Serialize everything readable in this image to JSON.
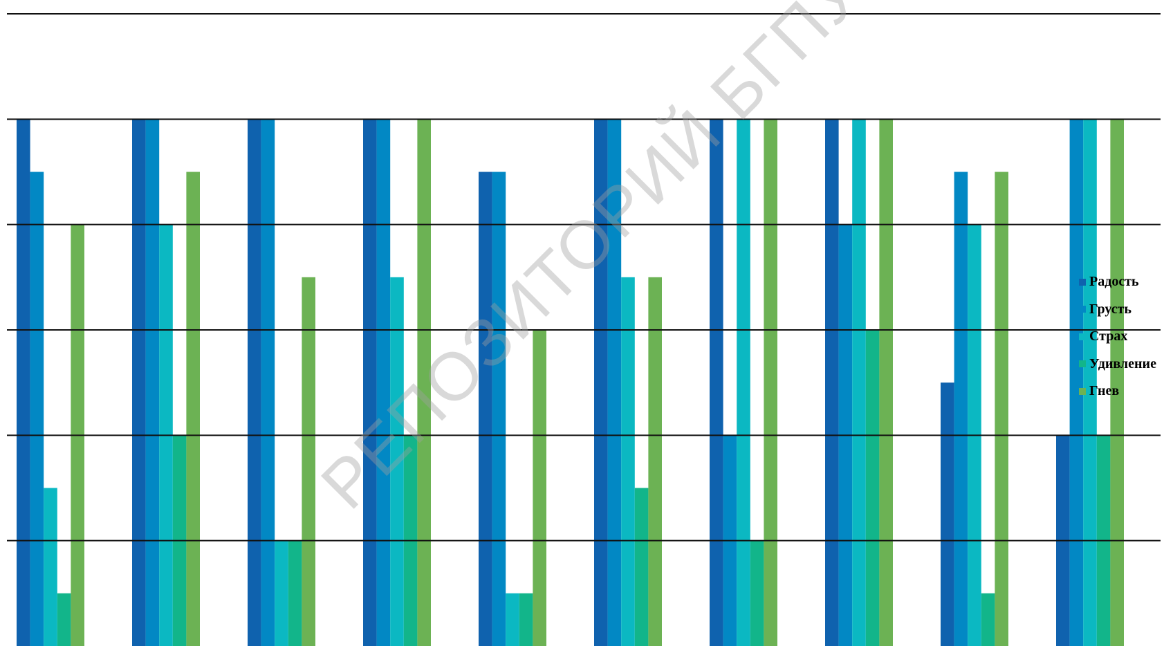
{
  "chart_data": {
    "type": "bar",
    "title": "",
    "xlabel": "",
    "ylabel": "",
    "ylim": [
      0,
      6
    ],
    "grid": true,
    "legend_position": "right",
    "groups": 10,
    "series": [
      {
        "name": "Радость",
        "color": "#0F62AE",
        "values": [
          5,
          5,
          5,
          5,
          4.5,
          5,
          5,
          5,
          2.5,
          2
        ]
      },
      {
        "name": "Грусть",
        "color": "#0288C4",
        "values": [
          4.5,
          5,
          5,
          5,
          4.5,
          5,
          2,
          4,
          4.5,
          5
        ]
      },
      {
        "name": "Страх",
        "color": "#0BB8C2",
        "values": [
          1.5,
          4,
          1,
          3.5,
          0.5,
          3.5,
          5,
          5,
          4,
          5
        ]
      },
      {
        "name": "Удивление",
        "color": "#12B58A",
        "values": [
          0.5,
          2,
          1,
          2,
          0.5,
          1.5,
          1,
          3,
          0.5,
          2
        ]
      },
      {
        "name": "Гнев",
        "color": "#6CB254",
        "values": [
          4,
          4.5,
          3.5,
          5,
          3,
          3.5,
          5,
          5,
          4.5,
          5
        ]
      }
    ]
  },
  "watermark": "РЕПОЗИТОРИЙ БГПУ"
}
